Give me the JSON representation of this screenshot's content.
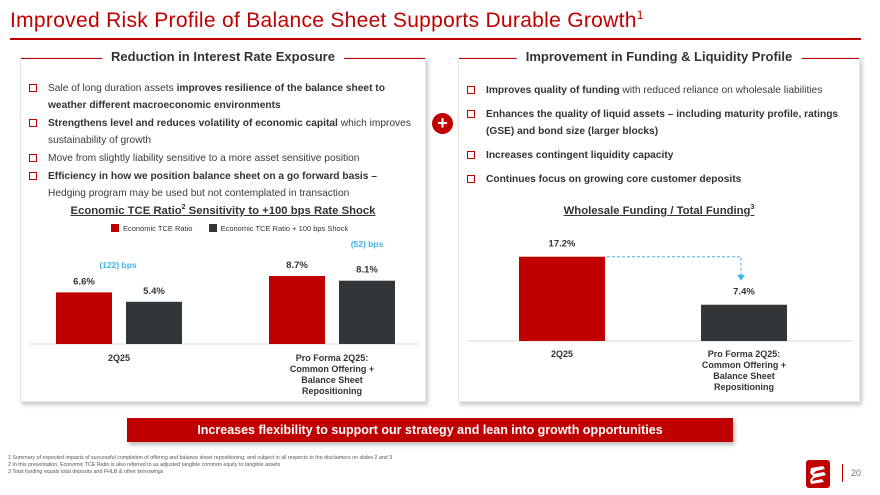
{
  "title": "Improved Risk Profile of Balance Sheet Supports Durable Growth",
  "title_footnote": "1",
  "left_panel": {
    "heading": "Reduction in Interest Rate Exposure",
    "bullets": [
      {
        "pre": "Sale of long duration assets ",
        "bold": "improves resilience of the balance sheet to weather different macroeconomic environments",
        "post": ""
      },
      {
        "pre": "",
        "bold": "Strengthens level and reduces volatility of economic capital",
        "post": " which improves sustainability of growth"
      },
      {
        "pre": "Move from slightly liability sensitive to a more asset sensitive position",
        "bold": "",
        "post": ""
      },
      {
        "pre": "",
        "bold": "Efficiency in how we position balance sheet on a go forward basis –",
        "post": " Hedging program may be used but not contemplated in transaction"
      }
    ],
    "chart_title": "Economic TCE Ratio",
    "chart_title_sup": "2",
    "chart_title_post": " Sensitivity to +100 bps Rate Shock"
  },
  "right_panel": {
    "heading": "Improvement in Funding & Liquidity Profile",
    "bullets": [
      {
        "pre": "",
        "bold": "Improves quality of funding",
        "post": " with reduced reliance on wholesale liabilities"
      },
      {
        "pre": "",
        "bold": "Enhances the quality of liquid assets – including maturity profile, ratings (GSE) and bond size (larger blocks)",
        "post": ""
      },
      {
        "pre": "",
        "bold": "Increases contingent liquidity capacity",
        "post": ""
      },
      {
        "pre": "",
        "bold": "Continues focus on growing core customer deposits",
        "post": ""
      }
    ],
    "chart_title": "Wholesale Funding / Total Funding",
    "chart_title_sup": "3"
  },
  "chart_data": [
    {
      "type": "bar",
      "title": "Economic TCE Ratio Sensitivity to +100 bps Rate Shock",
      "categories": [
        "2Q25",
        "Pro Forma 2Q25: Common Offering + Balance Sheet Repositioning"
      ],
      "category_lines": [
        [
          "2Q25"
        ],
        [
          "Pro Forma 2Q25:",
          "Common Offering +",
          "Balance Sheet",
          "Repositioning"
        ]
      ],
      "series": [
        {
          "name": "Economic TCE Ratio",
          "values": [
            6.6,
            8.7
          ],
          "labels": [
            "6.6%",
            "8.7%"
          ],
          "color": "#c00000"
        },
        {
          "name": "Economic TCE Ratio + 100 bps Shock",
          "values": [
            5.4,
            8.1
          ],
          "labels": [
            "5.4%",
            "8.1%"
          ],
          "color": "#333638"
        }
      ],
      "annotations": [
        "(122) bps",
        "(52) bps"
      ],
      "annotation_color": "#3fb7e6",
      "ylim": [
        0,
        10
      ],
      "legend": "top"
    },
    {
      "type": "bar",
      "title": "Wholesale Funding / Total Funding",
      "categories": [
        "2Q25",
        "Pro Forma 2Q25: Common Offering + Balance Sheet Repositioning"
      ],
      "category_lines": [
        [
          "2Q25"
        ],
        [
          "Pro Forma 2Q25:",
          "Common Offering +",
          "Balance Sheet",
          "Repositioning"
        ]
      ],
      "values": [
        17.2,
        7.4
      ],
      "labels": [
        "17.2%",
        "7.4%"
      ],
      "colors": [
        "#c00000",
        "#333638"
      ],
      "ylim": [
        0,
        20
      ],
      "arrow_color": "#3fb7e6"
    }
  ],
  "plus_symbol": "+",
  "banner": "Increases flexibility to support our strategy and lean into growth opportunities",
  "footnotes": [
    "1  Summary of expected impacts of successful completion of offering and balance sheet repositioning, and subject in all respects to the disclaimers on slides 2 and 3",
    "2  In this presentation, Economic TCE Ratio is also referred to as adjusted tangible common equity to tangible assets",
    "3  Total funding equals total deposits and FHLB & other borrowings"
  ],
  "page_number": "20",
  "colors": {
    "brand_red": "#c00000",
    "dark_bar": "#333638",
    "annotation_blue": "#3fb7e6"
  }
}
